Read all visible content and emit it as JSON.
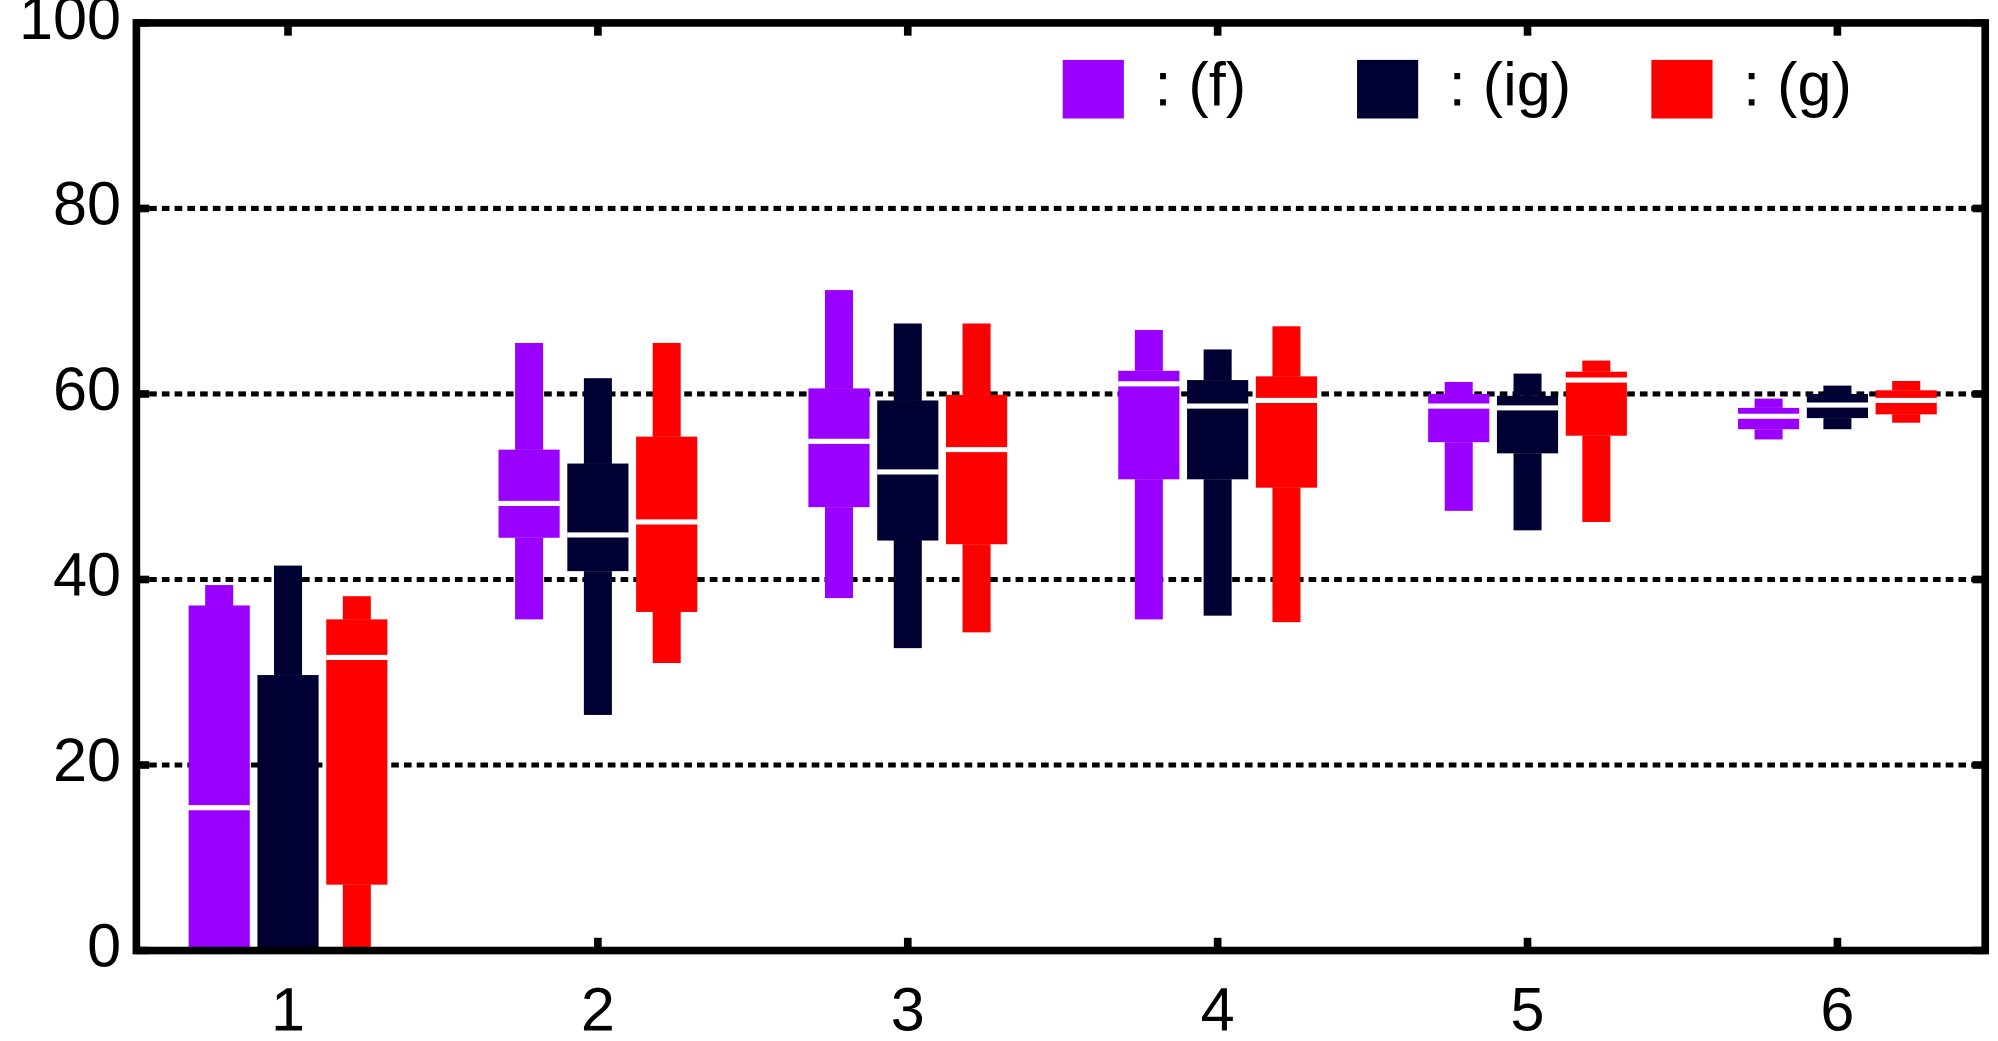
{
  "chart_data": {
    "type": "box",
    "categories": [
      "1",
      "2",
      "3",
      "4",
      "5",
      "6"
    ],
    "ylim": [
      0,
      100
    ],
    "yticks": [
      0,
      20,
      40,
      60,
      80,
      100
    ],
    "grid": true,
    "legend": "top-right",
    "series": [
      {
        "name": ": (f)",
        "color": "#9900ff",
        "min": [
          0,
          35.7,
          38.0,
          35.7,
          47.4,
          55.1
        ],
        "q1": [
          0,
          44.5,
          47.8,
          50.8,
          54.8,
          56.2
        ],
        "median": [
          15.4,
          48.2,
          54.9,
          61.1,
          58.7,
          57.6
        ],
        "q3": [
          37.2,
          54.0,
          60.6,
          62.5,
          60.0,
          58.5
        ],
        "max": [
          39.4,
          65.5,
          71.2,
          66.9,
          61.3,
          59.5
        ]
      },
      {
        "name": ": (ig)",
        "color": "#000033",
        "min": [
          0,
          25.4,
          32.6,
          36.1,
          45.3,
          56.2
        ],
        "q1": [
          0,
          40.9,
          44.2,
          50.8,
          53.6,
          57.4
        ],
        "median": [
          0,
          44.8,
          51.6,
          58.7,
          58.5,
          58.8
        ],
        "q3": [
          29.7,
          52.5,
          59.3,
          61.5,
          59.8,
          60.0
        ],
        "max": [
          41.5,
          61.7,
          67.6,
          64.8,
          62.2,
          60.9
        ]
      },
      {
        "name": ": (g)",
        "color": "#ff0000",
        "min": [
          0,
          31.0,
          34.3,
          35.4,
          46.2,
          56.9
        ],
        "q1": [
          7.1,
          36.5,
          43.8,
          49.9,
          55.5,
          57.8
        ],
        "median": [
          31.6,
          46.2,
          54.0,
          59.3,
          61.5,
          59.3
        ],
        "q3": [
          35.7,
          55.4,
          59.9,
          61.9,
          62.4,
          60.4
        ],
        "max": [
          38.2,
          65.5,
          67.6,
          67.3,
          63.6,
          61.4
        ]
      }
    ]
  }
}
